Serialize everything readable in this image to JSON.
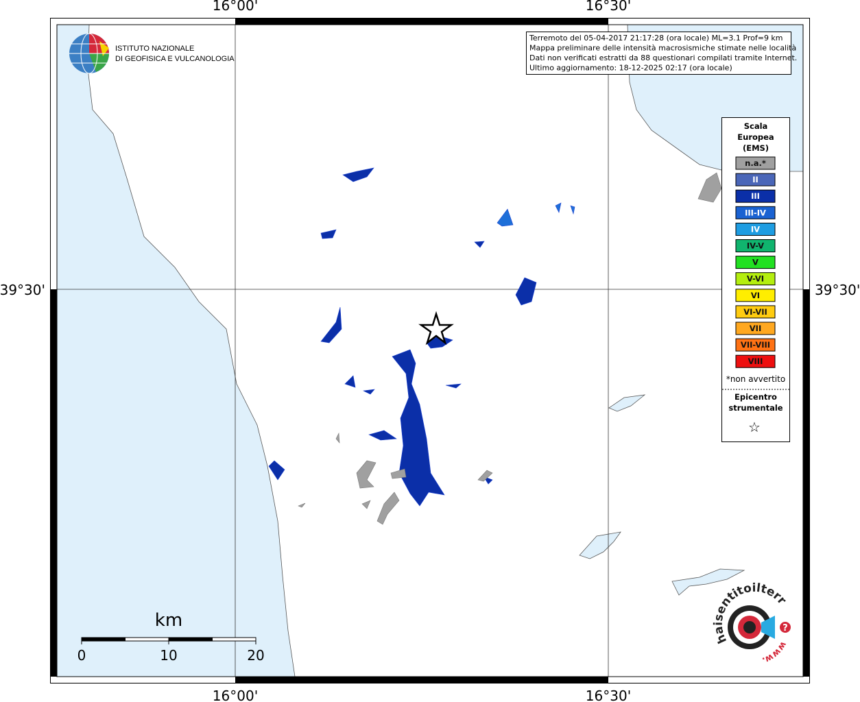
{
  "axes": {
    "top": [
      "16°00'",
      "16°30'"
    ],
    "bottom": [
      "16°00'",
      "16°30'"
    ],
    "left": "39°30'",
    "right": "39°30'"
  },
  "info": {
    "lines": [
      "Terremoto del 05-04-2017 21:17:28 (ora locale) ML=3.1 Prof=9 km",
      "Mappa preliminare delle intensità macrosismiche stimate nelle località",
      "Dati non verificati estratti da 88 questionari compilati tramite Internet.",
      "Ultimo aggiornamento: 18-12-2025 02:17 (ora locale)"
    ]
  },
  "ingv": {
    "line1": "ISTITUTO NAZIONALE",
    "line2": "DI GEOFISICA E VULCANOLOGIA"
  },
  "legend": {
    "title": [
      "Scala",
      "Europea",
      "(EMS)"
    ],
    "items": [
      {
        "label": "n.a.*",
        "color": "#a0a0a0"
      },
      {
        "label": "II",
        "color": "#4a66b8"
      },
      {
        "label": "III",
        "color": "#0b2fa8"
      },
      {
        "label": "III-IV",
        "color": "#1a62d2"
      },
      {
        "label": "IV",
        "color": "#1e9de2"
      },
      {
        "label": "IV-V",
        "color": "#10b46e"
      },
      {
        "label": "V",
        "color": "#22e022"
      },
      {
        "label": "V-VI",
        "color": "#b4ee10"
      },
      {
        "label": "VI",
        "color": "#ffee00"
      },
      {
        "label": "VI-VII",
        "color": "#ffcc10"
      },
      {
        "label": "VII",
        "color": "#ffa820"
      },
      {
        "label": "VII-VIII",
        "color": "#ff7214"
      },
      {
        "label": "VIII",
        "color": "#ee1010"
      }
    ],
    "note": "*non avvertito",
    "epicenter": [
      "Epicentro",
      "strumentale"
    ],
    "symbol": "☆"
  },
  "scale_bar": {
    "unit": "km",
    "labels": [
      "0",
      "10",
      "20"
    ]
  },
  "site_logo": {
    "text": "haisentitoilterremoto.it",
    "prefix": "www.",
    "mark": "?"
  }
}
